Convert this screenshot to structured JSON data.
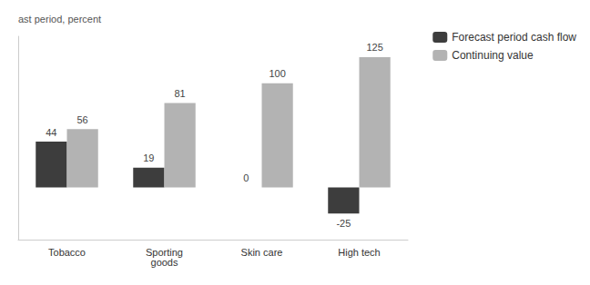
{
  "chart_data": {
    "type": "bar",
    "ylabel": "ast period, percent",
    "categories": [
      "Tobacco",
      "Sporting\ngoods",
      "Skin care",
      "High tech"
    ],
    "series": [
      {
        "name": "Forecast period cash flow",
        "color": "#3d3d3d",
        "values": [
          44,
          19,
          0,
          -25
        ]
      },
      {
        "name": "Continuing value",
        "color": "#b3b3b3",
        "values": [
          56,
          81,
          100,
          125
        ]
      }
    ],
    "ylim": [
      -50,
      145
    ],
    "grid": false,
    "legend": "upper right",
    "data_labels": true,
    "tick_labels": "x"
  }
}
